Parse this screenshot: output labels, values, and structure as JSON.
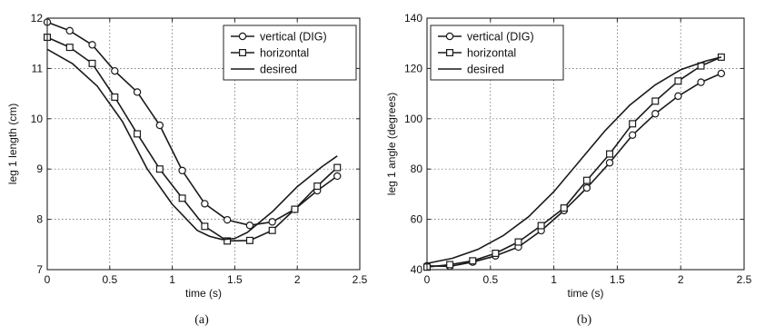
{
  "chart_data": [
    {
      "type": "line",
      "xlabel": "time (s)",
      "ylabel": "leg 1 length (cm)",
      "caption": "(a)",
      "xlim": [
        0,
        2.5
      ],
      "ylim": [
        7,
        12
      ],
      "xticks": [
        "0",
        "0.5",
        "1",
        "1.5",
        "2",
        "2.5"
      ],
      "yticks": [
        "7",
        "8",
        "9",
        "10",
        "11",
        "12"
      ],
      "grid": true,
      "legend_position": "top-right",
      "series": [
        {
          "name": "vertical (DIG)",
          "marker": "circle",
          "x": [
            0,
            0.18,
            0.36,
            0.54,
            0.72,
            0.9,
            1.08,
            1.26,
            1.44,
            1.62,
            1.8,
            1.98,
            2.16,
            2.32
          ],
          "y": [
            11.92,
            11.75,
            11.47,
            10.95,
            10.53,
            9.87,
            8.97,
            8.31,
            7.99,
            7.88,
            7.95,
            8.2,
            8.57,
            8.86
          ]
        },
        {
          "name": "horizontal",
          "marker": "square",
          "x": [
            0,
            0.18,
            0.36,
            0.54,
            0.72,
            0.9,
            1.08,
            1.26,
            1.44,
            1.62,
            1.8,
            1.98,
            2.16,
            2.32
          ],
          "y": [
            11.62,
            11.42,
            11.1,
            10.43,
            9.7,
            9.0,
            8.42,
            7.86,
            7.57,
            7.58,
            7.78,
            8.2,
            8.66,
            9.03
          ]
        },
        {
          "name": "desired",
          "marker": "none",
          "x": [
            0,
            0.2,
            0.4,
            0.6,
            0.8,
            1.0,
            1.2,
            1.3,
            1.4,
            1.5,
            1.6,
            1.8,
            2.0,
            2.2,
            2.32
          ],
          "y": [
            11.38,
            11.1,
            10.65,
            9.95,
            9.0,
            8.3,
            7.78,
            7.66,
            7.6,
            7.62,
            7.74,
            8.15,
            8.65,
            9.05,
            9.26
          ]
        }
      ]
    },
    {
      "type": "line",
      "xlabel": "time (s)",
      "ylabel": "leg 1 angle (degrees)",
      "caption": "(b)",
      "xlim": [
        0,
        2.5
      ],
      "ylim": [
        40,
        140
      ],
      "xticks": [
        "0",
        "0.5",
        "1",
        "1.5",
        "2",
        "2.5"
      ],
      "yticks": [
        "40",
        "60",
        "80",
        "100",
        "120",
        "140"
      ],
      "grid": true,
      "legend_position": "top-left",
      "series": [
        {
          "name": "vertical (DIG)",
          "marker": "circle",
          "x": [
            0,
            0.18,
            0.36,
            0.54,
            0.72,
            0.9,
            1.08,
            1.26,
            1.44,
            1.62,
            1.8,
            1.98,
            2.16,
            2.32
          ],
          "y": [
            41.5,
            41.3,
            43.0,
            45.5,
            49.0,
            55.5,
            63.5,
            72.5,
            82.5,
            93.5,
            102.0,
            109.0,
            114.5,
            118.0
          ]
        },
        {
          "name": "horizontal",
          "marker": "square",
          "x": [
            0,
            0.18,
            0.36,
            0.54,
            0.72,
            0.9,
            1.08,
            1.26,
            1.44,
            1.62,
            1.8,
            1.98,
            2.16,
            2.32
          ],
          "y": [
            41.0,
            42.0,
            43.5,
            46.5,
            51.0,
            57.5,
            64.5,
            75.5,
            86.0,
            98.0,
            107.0,
            115.0,
            121.0,
            124.5
          ]
        },
        {
          "name": "desired",
          "marker": "none",
          "x": [
            0,
            0.2,
            0.4,
            0.6,
            0.8,
            1.0,
            1.2,
            1.4,
            1.6,
            1.8,
            2.0,
            2.2,
            2.32
          ],
          "y": [
            42.5,
            44.5,
            48.0,
            53.5,
            61.0,
            71.0,
            83.0,
            95.0,
            105.5,
            113.5,
            119.5,
            123.0,
            124.5
          ]
        }
      ]
    }
  ]
}
